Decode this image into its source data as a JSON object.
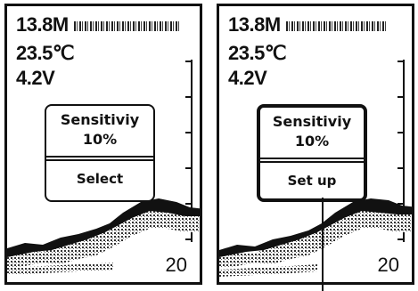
{
  "screens": [
    {
      "depth": "13.8M",
      "temperature": "23.5℃",
      "voltage": "4.2V",
      "menu": {
        "title": "Sensitiviy",
        "value": "10%",
        "action": "Select"
      },
      "range": "20"
    },
    {
      "depth": "13.8M",
      "temperature": "23.5℃",
      "voltage": "4.2V",
      "menu": {
        "title": "Sensitiviy",
        "value": "10%",
        "action": "Set up"
      },
      "range": "20"
    }
  ],
  "colors": {
    "ink": "#111111",
    "background": "#ffffff"
  }
}
